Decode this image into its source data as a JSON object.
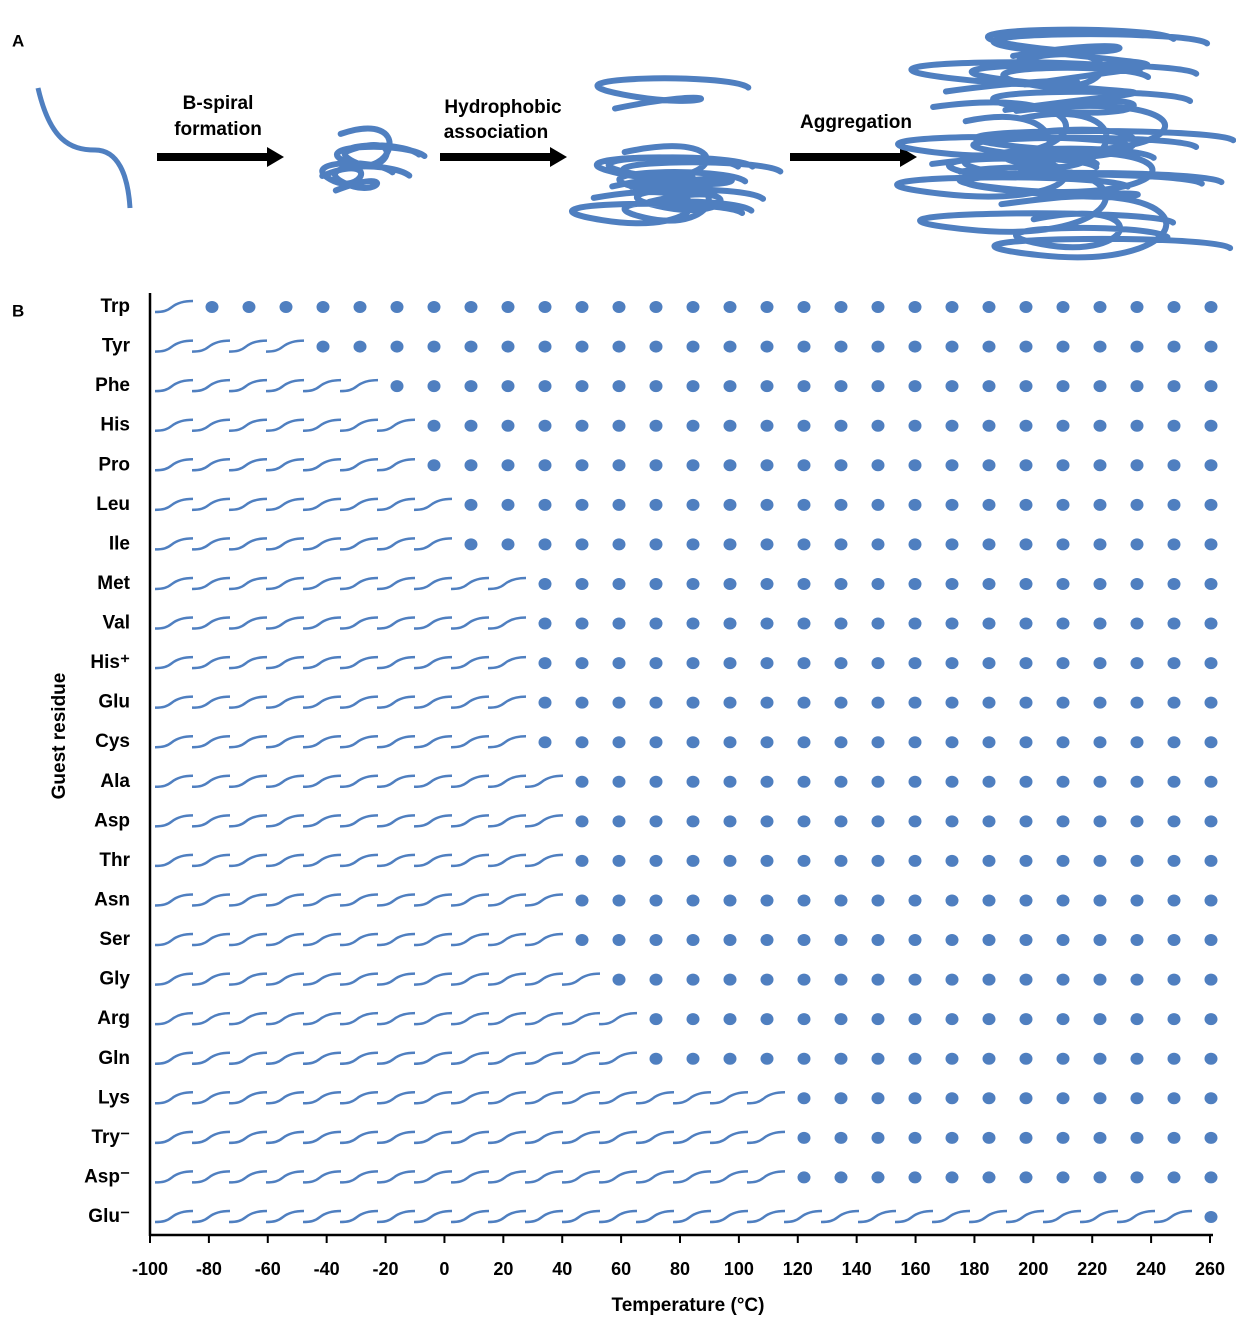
{
  "panel_a": {
    "label": "A",
    "steps": [
      [
        "B-spiral",
        "formation"
      ],
      [
        "Hydrophobic",
        "association"
      ],
      [
        "Aggregation"
      ]
    ]
  },
  "chart_data": {
    "type": "transition",
    "label": "B",
    "categories": [
      "Trp",
      "Tyr",
      "Phe",
      "His",
      "Pro",
      "Leu",
      "Ile",
      "Met",
      "Val",
      "His⁺",
      "Glu",
      "Cys",
      "Ala",
      "Asp",
      "Thr",
      "Asn",
      "Ser",
      "Gly",
      "Arg",
      "Gln",
      "Lys",
      "Try⁻",
      "Asp⁻",
      "Glu⁻"
    ],
    "values": [
      -80,
      -50,
      -23,
      -13,
      -4,
      4,
      4,
      22,
      24,
      29,
      29,
      29,
      41,
      43,
      44,
      44,
      44,
      55,
      69,
      60,
      119,
      121,
      122,
      248
    ],
    "color": "#4f7fc0",
    "xlim": [
      -100,
      260
    ],
    "xticks": [
      -100,
      -80,
      -60,
      -40,
      -20,
      0,
      20,
      40,
      60,
      80,
      100,
      120,
      140,
      160,
      180,
      200,
      220,
      240,
      260
    ],
    "xlabel": "Temperature (°C)",
    "ylabel": "Guest residue"
  }
}
